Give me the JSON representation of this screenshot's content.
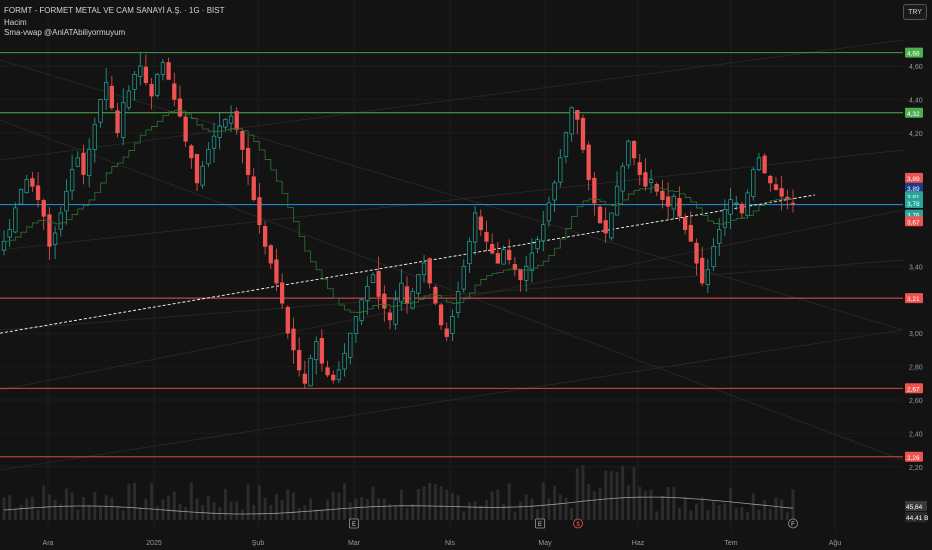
{
  "header": {
    "title": "FORMT - FORMET METAL VE CAM SANAYİ A.Ş. · 1G · BIST",
    "volume_label": "Hacim",
    "indicator_label": "Sma-vwap @AnlATAbiliyormuyum",
    "currency": "TRY"
  },
  "chart_data": {
    "type": "candlestick",
    "symbol": "FORMT",
    "timeframe": "1G",
    "exchange": "BIST",
    "currency": "TRY",
    "x_tick_labels": [
      "Ara",
      "2025",
      "Şub",
      "Mar",
      "Nis",
      "May",
      "Haz",
      "Tem",
      "Ağu"
    ],
    "y_tick_labels": [
      "4,60",
      "4,40",
      "4,20",
      "3,40",
      "3,00",
      "2,80",
      "2,60",
      "2,40",
      "2,20"
    ],
    "ylim": [
      2.16,
      4.72
    ],
    "horizontal_levels": [
      {
        "value": 4.68,
        "label": "4,68",
        "color": "#4caf50"
      },
      {
        "value": 4.32,
        "label": "4,32",
        "color": "#4caf50"
      },
      {
        "value": 3.21,
        "label": "3,21",
        "color": "#ef5350"
      },
      {
        "value": 2.67,
        "label": "2,67",
        "color": "#ef5350"
      },
      {
        "value": 2.26,
        "label": "2,26",
        "color": "#ef5350"
      }
    ],
    "current_price_line": {
      "value": 3.77,
      "color": "#2196f3"
    },
    "price_tags": [
      {
        "label": "3,89",
        "value": 3.93,
        "color": "#ef5350"
      },
      {
        "label": "3,89",
        "value": 3.87,
        "color": "#1e3a8a"
      },
      {
        "label": "3,81",
        "value": 3.82,
        "color": "#26a69a"
      },
      {
        "label": "3,78",
        "value": 3.78,
        "color": "#26a69a"
      },
      {
        "label": "3,76",
        "value": 3.71,
        "color": "#26a69a"
      },
      {
        "label": "3,67",
        "value": 3.67,
        "color": "#ef5350"
      }
    ],
    "volume_tags": [
      {
        "label": "45,64",
        "color": "#3a3a3a"
      },
      {
        "label": "44,41 B",
        "color": "#2a2a2a"
      }
    ],
    "trendline": {
      "from": {
        "x": "Ara start",
        "y": 3.0
      },
      "to": {
        "x": "Tem end",
        "y": 3.81
      },
      "style": "dashed",
      "color": "#ffffff"
    },
    "series": [
      {
        "name": "price",
        "kind": "candles",
        "closes": [
          3.55,
          3.62,
          3.75,
          3.86,
          3.92,
          3.88,
          3.8,
          3.7,
          3.52,
          3.6,
          3.72,
          3.85,
          3.98,
          4.05,
          3.95,
          4.1,
          4.25,
          4.4,
          4.5,
          4.35,
          4.2,
          4.38,
          4.45,
          4.55,
          4.6,
          4.5,
          4.42,
          4.55,
          4.62,
          4.52,
          4.4,
          4.3,
          4.15,
          4.05,
          3.9,
          4.0,
          4.1,
          4.18,
          4.24,
          4.28,
          4.3,
          4.22,
          4.1,
          3.95,
          3.8,
          3.65,
          3.52,
          3.42,
          3.3,
          3.18,
          3.0,
          2.9,
          2.78,
          2.7,
          2.85,
          2.95,
          2.82,
          2.75,
          2.72,
          2.78,
          2.88,
          3.0,
          3.1,
          3.2,
          3.28,
          3.35,
          3.22,
          3.15,
          3.08,
          3.2,
          3.3,
          3.18,
          3.25,
          3.35,
          3.42,
          3.3,
          3.18,
          3.05,
          2.98,
          3.1,
          3.25,
          3.4,
          3.55,
          3.72,
          3.62,
          3.55,
          3.48,
          3.42,
          3.5,
          3.44,
          3.38,
          3.32,
          3.4,
          3.48,
          3.56,
          3.65,
          3.78,
          3.9,
          4.05,
          4.2,
          4.35,
          4.28,
          4.1,
          3.92,
          3.78,
          3.66,
          3.6,
          3.72,
          3.88,
          4.0,
          4.15,
          4.05,
          3.95,
          3.88,
          3.92,
          3.85,
          3.8,
          3.76,
          3.82,
          3.7,
          3.62,
          3.55,
          3.42,
          3.3,
          3.38,
          3.52,
          3.62,
          3.74,
          3.8,
          3.78,
          3.72,
          3.84,
          3.98,
          4.05,
          3.96,
          3.9,
          3.86,
          3.82,
          3.8,
          3.77
        ]
      },
      {
        "name": "sma-vwap",
        "kind": "step-line"
      },
      {
        "name": "volume",
        "kind": "bars"
      }
    ]
  }
}
